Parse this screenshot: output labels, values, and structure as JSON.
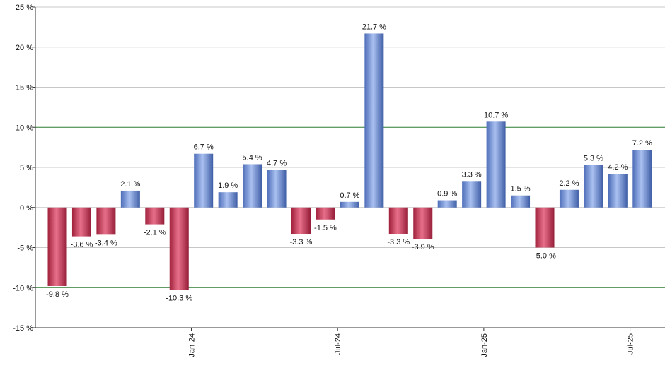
{
  "chart_data": {
    "type": "bar",
    "ylim": [
      -15,
      25
    ],
    "yticks": [
      -15,
      -10,
      -5,
      0,
      5,
      10,
      15,
      20,
      25
    ],
    "ytick_suffix": " %",
    "grid": true,
    "reference_lines": [
      10,
      -10
    ],
    "x_tick_labels": [
      {
        "label": "Jan-24",
        "index": 5.5
      },
      {
        "label": "Jul-24",
        "index": 11.5
      },
      {
        "label": "Jan-25",
        "index": 17.5
      },
      {
        "label": "Jul-25",
        "index": 23.5
      }
    ],
    "values": [
      -9.8,
      -3.6,
      -3.4,
      2.1,
      -2.1,
      -10.3,
      6.7,
      1.9,
      5.4,
      4.7,
      -3.3,
      -1.5,
      0.7,
      21.7,
      -3.3,
      -3.9,
      0.9,
      3.3,
      10.7,
      1.5,
      -5.0,
      2.2,
      5.3,
      4.2,
      7.2
    ],
    "value_labels": [
      "-9.8 %",
      "-3.6 %",
      "-3.4 %",
      "2.1 %",
      "-2.1 %",
      "-10.3 %",
      "6.7 %",
      "1.9 %",
      "5.4 %",
      "4.7 %",
      "-3.3 %",
      "-1.5 %",
      "0.7 %",
      "21.7 %",
      "-3.3 %",
      "-3.9 %",
      "0.9 %",
      "3.3 %",
      "10.7 %",
      "1.5 %",
      "-5.0 %",
      "2.2 %",
      "5.3 %",
      "4.2 %",
      "7.2 %"
    ],
    "colors": {
      "positive": "#6f8fd8",
      "negative": "#c8304f",
      "reference_line": "#2e7d32",
      "grid": "#c8c8c8",
      "axis": "#333333"
    }
  }
}
